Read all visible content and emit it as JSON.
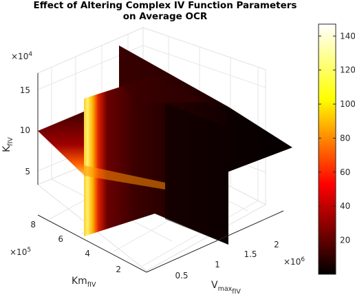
{
  "chart_data": {
    "type": "slice",
    "title": "Effect of Altering Complex IV Function Parameters on Average OCR",
    "title_lines": [
      "Effect of Altering Complex IV Function Parameters",
      "on Average OCR"
    ],
    "axes": {
      "x": {
        "label_main": "V",
        "label_sub": "max",
        "label_subsub": "fIV",
        "ticks": [
          "0.5",
          "1",
          "1.5",
          "2"
        ],
        "tick_values": [
          0.5,
          1,
          1.5,
          2
        ],
        "exponent_base": "×10",
        "exponent": "6",
        "range": [
          0.1,
          2.5
        ]
      },
      "y": {
        "label_main": "Km",
        "label_sub": "fIV",
        "ticks": [
          "2",
          "4",
          "6",
          "8"
        ],
        "tick_values": [
          2,
          4,
          6,
          8
        ],
        "exponent_base": "×10",
        "exponent": "5",
        "range": [
          0.5,
          9.0
        ]
      },
      "z": {
        "label_main": "K",
        "label_sub": "fIV",
        "ticks": [
          "5",
          "10",
          "15"
        ],
        "tick_values": [
          5,
          10,
          15
        ],
        "exponent_base": "×10",
        "exponent": "4",
        "range": [
          0.5,
          17.5
        ]
      }
    },
    "slices": [
      {
        "plane": "x",
        "value": 1.3,
        "note": "vertical slice at mid Vmax (back-left / front-right plane)"
      },
      {
        "plane": "y",
        "value": 4.8,
        "note": "vertical slice at mid Km"
      },
      {
        "plane": "z",
        "value": 9.0,
        "note": "horizontal slice at mid K"
      }
    ],
    "colorbar": {
      "colormap": "hot",
      "ticks": [
        "20",
        "40",
        "60",
        "80",
        "100",
        "120",
        "140"
      ],
      "tick_values": [
        20,
        40,
        60,
        80,
        100,
        120,
        140
      ],
      "range": [
        0,
        147
      ]
    },
    "colors": {
      "low": "#000000",
      "dark_red": "#3a0000",
      "red": "#d00000",
      "orange": "#ff8a00",
      "yellow": "#ffff40",
      "white": "#ffffff"
    }
  }
}
